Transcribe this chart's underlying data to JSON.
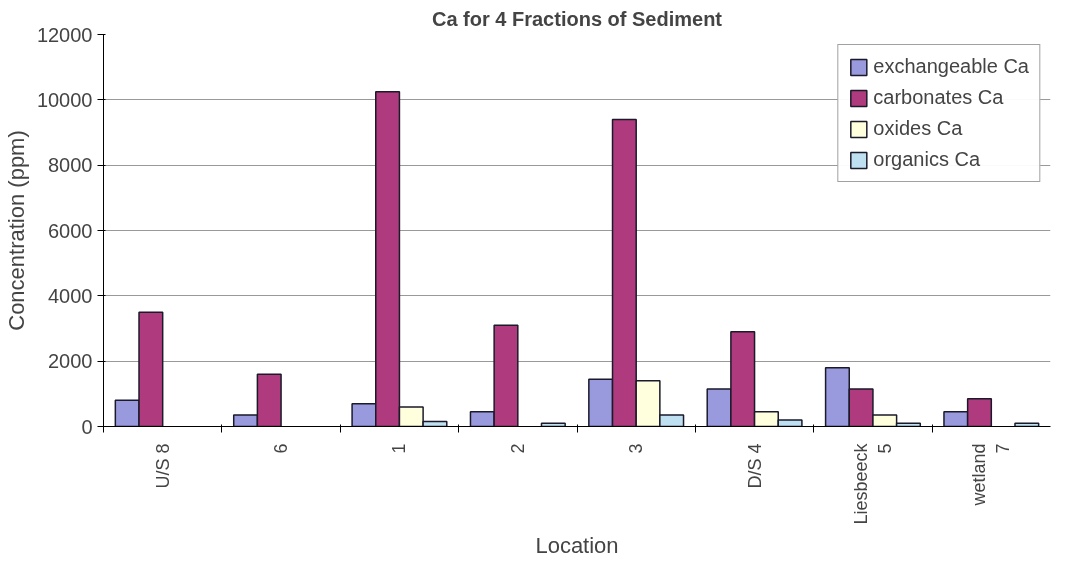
{
  "chart_data": {
    "type": "bar",
    "title": "Ca for 4 Fractions of Sediment",
    "xlabel": "Location",
    "ylabel": "Concentration (ppm)",
    "categories": [
      "U/S 8",
      "6",
      "1",
      "2",
      "3",
      "D/S 4",
      "Liesbeeck 5",
      "wetland 7"
    ],
    "series": [
      {
        "name": "exchangeable Ca",
        "color": "#9999dd",
        "values": [
          800,
          350,
          700,
          450,
          1450,
          1150,
          1800,
          450
        ]
      },
      {
        "name": "carbonates Ca",
        "color": "#b03a7e",
        "values": [
          3500,
          1600,
          10250,
          3100,
          9400,
          2900,
          1150,
          850
        ]
      },
      {
        "name": "oxides Ca",
        "color": "#ffffdd",
        "values": [
          null,
          null,
          600,
          null,
          1400,
          450,
          350,
          null
        ]
      },
      {
        "name": "organics Ca",
        "color": "#bfe0f0",
        "values": [
          null,
          null,
          150,
          100,
          350,
          200,
          100,
          100
        ]
      }
    ],
    "ylim": [
      0,
      12000
    ],
    "yticks": [
      0,
      2000,
      4000,
      6000,
      8000,
      10000,
      12000
    ],
    "grid": "y",
    "legend": "top right"
  }
}
